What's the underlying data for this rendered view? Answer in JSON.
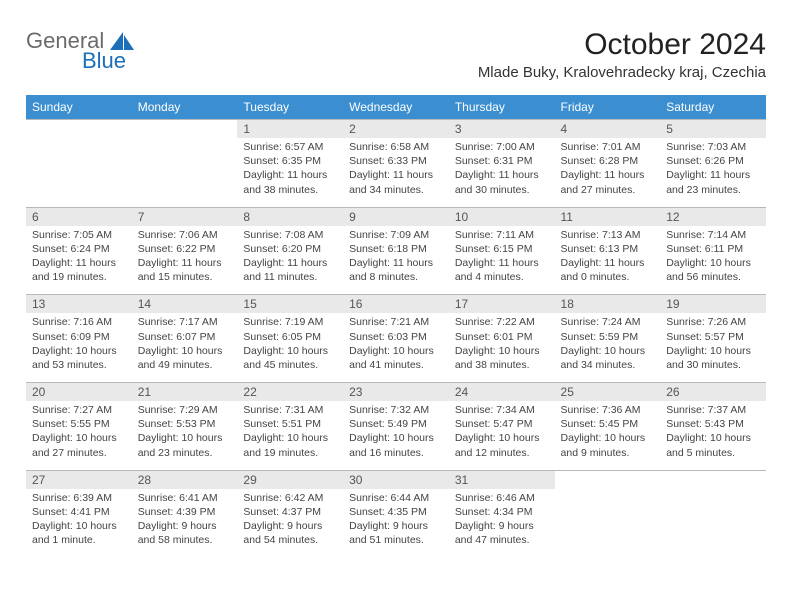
{
  "logo": {
    "text1": "General",
    "text2": "Blue"
  },
  "title": "October 2024",
  "location": "Mlade Buky, Kralovehradecky kraj, Czechia",
  "colors": {
    "header_bg": "#3b8ed0",
    "header_text": "#ffffff",
    "daynum_bg": "#e9e9e9",
    "cell_text": "#444444",
    "border": "#b8b8b8"
  },
  "weekdays": [
    "Sunday",
    "Monday",
    "Tuesday",
    "Wednesday",
    "Thursday",
    "Friday",
    "Saturday"
  ],
  "weeks": [
    {
      "nums": [
        "",
        "",
        "1",
        "2",
        "3",
        "4",
        "5"
      ],
      "cells": [
        null,
        null,
        {
          "sunrise": "Sunrise: 6:57 AM",
          "sunset": "Sunset: 6:35 PM",
          "day1": "Daylight: 11 hours",
          "day2": "and 38 minutes."
        },
        {
          "sunrise": "Sunrise: 6:58 AM",
          "sunset": "Sunset: 6:33 PM",
          "day1": "Daylight: 11 hours",
          "day2": "and 34 minutes."
        },
        {
          "sunrise": "Sunrise: 7:00 AM",
          "sunset": "Sunset: 6:31 PM",
          "day1": "Daylight: 11 hours",
          "day2": "and 30 minutes."
        },
        {
          "sunrise": "Sunrise: 7:01 AM",
          "sunset": "Sunset: 6:28 PM",
          "day1": "Daylight: 11 hours",
          "day2": "and 27 minutes."
        },
        {
          "sunrise": "Sunrise: 7:03 AM",
          "sunset": "Sunset: 6:26 PM",
          "day1": "Daylight: 11 hours",
          "day2": "and 23 minutes."
        }
      ]
    },
    {
      "nums": [
        "6",
        "7",
        "8",
        "9",
        "10",
        "11",
        "12"
      ],
      "cells": [
        {
          "sunrise": "Sunrise: 7:05 AM",
          "sunset": "Sunset: 6:24 PM",
          "day1": "Daylight: 11 hours",
          "day2": "and 19 minutes."
        },
        {
          "sunrise": "Sunrise: 7:06 AM",
          "sunset": "Sunset: 6:22 PM",
          "day1": "Daylight: 11 hours",
          "day2": "and 15 minutes."
        },
        {
          "sunrise": "Sunrise: 7:08 AM",
          "sunset": "Sunset: 6:20 PM",
          "day1": "Daylight: 11 hours",
          "day2": "and 11 minutes."
        },
        {
          "sunrise": "Sunrise: 7:09 AM",
          "sunset": "Sunset: 6:18 PM",
          "day1": "Daylight: 11 hours",
          "day2": "and 8 minutes."
        },
        {
          "sunrise": "Sunrise: 7:11 AM",
          "sunset": "Sunset: 6:15 PM",
          "day1": "Daylight: 11 hours",
          "day2": "and 4 minutes."
        },
        {
          "sunrise": "Sunrise: 7:13 AM",
          "sunset": "Sunset: 6:13 PM",
          "day1": "Daylight: 11 hours",
          "day2": "and 0 minutes."
        },
        {
          "sunrise": "Sunrise: 7:14 AM",
          "sunset": "Sunset: 6:11 PM",
          "day1": "Daylight: 10 hours",
          "day2": "and 56 minutes."
        }
      ]
    },
    {
      "nums": [
        "13",
        "14",
        "15",
        "16",
        "17",
        "18",
        "19"
      ],
      "cells": [
        {
          "sunrise": "Sunrise: 7:16 AM",
          "sunset": "Sunset: 6:09 PM",
          "day1": "Daylight: 10 hours",
          "day2": "and 53 minutes."
        },
        {
          "sunrise": "Sunrise: 7:17 AM",
          "sunset": "Sunset: 6:07 PM",
          "day1": "Daylight: 10 hours",
          "day2": "and 49 minutes."
        },
        {
          "sunrise": "Sunrise: 7:19 AM",
          "sunset": "Sunset: 6:05 PM",
          "day1": "Daylight: 10 hours",
          "day2": "and 45 minutes."
        },
        {
          "sunrise": "Sunrise: 7:21 AM",
          "sunset": "Sunset: 6:03 PM",
          "day1": "Daylight: 10 hours",
          "day2": "and 41 minutes."
        },
        {
          "sunrise": "Sunrise: 7:22 AM",
          "sunset": "Sunset: 6:01 PM",
          "day1": "Daylight: 10 hours",
          "day2": "and 38 minutes."
        },
        {
          "sunrise": "Sunrise: 7:24 AM",
          "sunset": "Sunset: 5:59 PM",
          "day1": "Daylight: 10 hours",
          "day2": "and 34 minutes."
        },
        {
          "sunrise": "Sunrise: 7:26 AM",
          "sunset": "Sunset: 5:57 PM",
          "day1": "Daylight: 10 hours",
          "day2": "and 30 minutes."
        }
      ]
    },
    {
      "nums": [
        "20",
        "21",
        "22",
        "23",
        "24",
        "25",
        "26"
      ],
      "cells": [
        {
          "sunrise": "Sunrise: 7:27 AM",
          "sunset": "Sunset: 5:55 PM",
          "day1": "Daylight: 10 hours",
          "day2": "and 27 minutes."
        },
        {
          "sunrise": "Sunrise: 7:29 AM",
          "sunset": "Sunset: 5:53 PM",
          "day1": "Daylight: 10 hours",
          "day2": "and 23 minutes."
        },
        {
          "sunrise": "Sunrise: 7:31 AM",
          "sunset": "Sunset: 5:51 PM",
          "day1": "Daylight: 10 hours",
          "day2": "and 19 minutes."
        },
        {
          "sunrise": "Sunrise: 7:32 AM",
          "sunset": "Sunset: 5:49 PM",
          "day1": "Daylight: 10 hours",
          "day2": "and 16 minutes."
        },
        {
          "sunrise": "Sunrise: 7:34 AM",
          "sunset": "Sunset: 5:47 PM",
          "day1": "Daylight: 10 hours",
          "day2": "and 12 minutes."
        },
        {
          "sunrise": "Sunrise: 7:36 AM",
          "sunset": "Sunset: 5:45 PM",
          "day1": "Daylight: 10 hours",
          "day2": "and 9 minutes."
        },
        {
          "sunrise": "Sunrise: 7:37 AM",
          "sunset": "Sunset: 5:43 PM",
          "day1": "Daylight: 10 hours",
          "day2": "and 5 minutes."
        }
      ]
    },
    {
      "nums": [
        "27",
        "28",
        "29",
        "30",
        "31",
        "",
        ""
      ],
      "cells": [
        {
          "sunrise": "Sunrise: 6:39 AM",
          "sunset": "Sunset: 4:41 PM",
          "day1": "Daylight: 10 hours",
          "day2": "and 1 minute."
        },
        {
          "sunrise": "Sunrise: 6:41 AM",
          "sunset": "Sunset: 4:39 PM",
          "day1": "Daylight: 9 hours",
          "day2": "and 58 minutes."
        },
        {
          "sunrise": "Sunrise: 6:42 AM",
          "sunset": "Sunset: 4:37 PM",
          "day1": "Daylight: 9 hours",
          "day2": "and 54 minutes."
        },
        {
          "sunrise": "Sunrise: 6:44 AM",
          "sunset": "Sunset: 4:35 PM",
          "day1": "Daylight: 9 hours",
          "day2": "and 51 minutes."
        },
        {
          "sunrise": "Sunrise: 6:46 AM",
          "sunset": "Sunset: 4:34 PM",
          "day1": "Daylight: 9 hours",
          "day2": "and 47 minutes."
        },
        null,
        null
      ]
    }
  ]
}
